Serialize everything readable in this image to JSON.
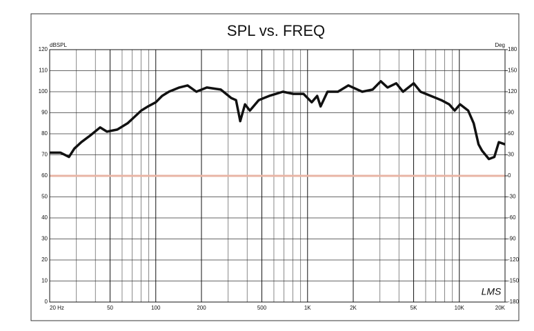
{
  "chart_data": {
    "type": "line",
    "title": "SPL vs. FREQ",
    "y_label": "dBSPL",
    "y2_label": "Deg",
    "logo": "LMS",
    "xlog": true,
    "xlim": [
      20,
      20000
    ],
    "xticks": [
      {
        "value": 20,
        "label": "20 Hz"
      },
      50,
      100,
      200,
      500,
      {
        "value": 1000,
        "label": "1K"
      },
      {
        "value": 2000,
        "label": "2K"
      },
      {
        "value": 5000,
        "label": "5K"
      },
      {
        "value": 10000,
        "label": "10K"
      },
      {
        "value": 20000,
        "label": "20K"
      }
    ],
    "x_minor_ticks": [
      30,
      40,
      60,
      70,
      80,
      90,
      300,
      400,
      600,
      700,
      800,
      900,
      3000,
      4000,
      6000,
      7000,
      8000,
      9000
    ],
    "ylim": [
      0,
      120
    ],
    "yticks": [
      0,
      10,
      20,
      30,
      40,
      50,
      60,
      70,
      80,
      90,
      100,
      110,
      120
    ],
    "y2lim": [
      -180,
      180
    ],
    "y2ticks": [
      -180,
      -150,
      -120,
      -90,
      -60,
      -30,
      0,
      30,
      60,
      90,
      120,
      150,
      180
    ],
    "grid": true,
    "reference_line": {
      "value": 60,
      "color": "#e8b4a4"
    },
    "x": [
      20,
      23.6,
      26.8,
      29.1,
      32.3,
      36.7,
      43,
      47.7,
      55.8,
      65.2,
      72.3,
      80.2,
      88.9,
      100,
      110,
      122,
      143,
      162,
      185,
      217,
      268,
      314,
      338,
      360,
      387,
      417,
      477,
      559,
      620,
      688,
      805,
      940,
      1065,
      1157,
      1219,
      1353,
      1585,
      1857,
      2292,
      2683,
      3037,
      3363,
      3840,
      4260,
      5010,
      5550,
      6500,
      7600,
      8580,
      9320,
      10110,
      11440,
      12440,
      13380,
      14100,
      15650,
      17000,
      18200,
      20000
    ],
    "series": [
      {
        "name": "SPL",
        "color": "#111111",
        "values": [
          71,
          71,
          69,
          73,
          76,
          79,
          83,
          81,
          82,
          85,
          88,
          91,
          93,
          95,
          98,
          100,
          102,
          103,
          100,
          102,
          101,
          97,
          96,
          86,
          94,
          91,
          96,
          98,
          99,
          100,
          99,
          99,
          95,
          98,
          93,
          100,
          100,
          103,
          100,
          101,
          105,
          102,
          104,
          100,
          104,
          100,
          98,
          96,
          94,
          91,
          94,
          91,
          85,
          75,
          72,
          68,
          69,
          76,
          75
        ]
      }
    ]
  }
}
